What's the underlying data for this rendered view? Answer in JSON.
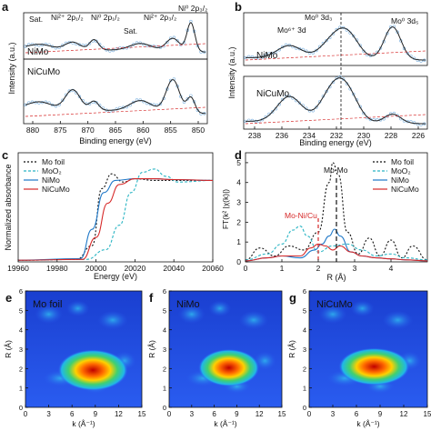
{
  "panels": {
    "a": {
      "label": "a",
      "xlabel": "Binding energy (eV)",
      "ylabel": "Intensity (a.u.)",
      "xticks": [
        "880",
        "875",
        "870",
        "865",
        "860",
        "855",
        "850"
      ],
      "top_name": "NiMo",
      "bottom_name": "NiCuMo",
      "annotations": [
        "Sat.",
        "Ni²⁺ 2p₁/₂",
        "Ni⁰ 2p₁/₂",
        "Sat.",
        "Ni²⁺ 2p₃/₂",
        "Ni⁰ 2p₃/₂"
      ]
    },
    "b": {
      "label": "b",
      "xlabel": "Binding energy (eV)",
      "ylabel": "Intensity (a.u.)",
      "xticks": [
        "238",
        "236",
        "234",
        "232",
        "230",
        "228",
        "226"
      ],
      "top_name": "NiMo",
      "bottom_name": "NiCuMo",
      "annotations": [
        "Mo⁰ 3d₃",
        "Mo⁶⁺ 3d",
        "Mo⁰ 3d₅"
      ]
    },
    "c": {
      "label": "c",
      "xlabel": "Energy (eV)",
      "ylabel": "Normalized absorbance",
      "xticks": [
        "19960",
        "19980",
        "20000",
        "20020",
        "20040",
        "20060"
      ],
      "legend": [
        "Mo foil",
        "MoO₂",
        "NiMo",
        "NiCuMo"
      ]
    },
    "d": {
      "label": "d",
      "xlabel": "R (Å)",
      "ylabel": "FT(k² |χ(k)|)",
      "xticks": [
        "0",
        "1",
        "2",
        "3",
        "4"
      ],
      "yticks": [
        "0",
        "1",
        "2",
        "3",
        "4",
        "5"
      ],
      "legend": [
        "Mo foil",
        "MoO₂",
        "NiMo",
        "NiCuMo"
      ],
      "annotations": [
        "Mo-Mo",
        "Mo-Ni/Cu"
      ]
    },
    "e": {
      "label": "e",
      "name": "Mo foil"
    },
    "f": {
      "label": "f",
      "name": "NiMo"
    },
    "g": {
      "label": "g",
      "name": "NiCuMo"
    },
    "wt": {
      "xlabel": "k (Å⁻¹)",
      "ylabel": "R (Å)",
      "xticks": [
        "0",
        "3",
        "6",
        "9",
        "12",
        "15"
      ],
      "yticks": [
        "0",
        "1",
        "2",
        "3",
        "4",
        "5",
        "6"
      ]
    }
  },
  "colors": {
    "mo_foil": "#111111",
    "moo2": "#2bb5c4",
    "nimo": "#1f78c8",
    "nicumo": "#d62828",
    "data_points": "#7fb3e0",
    "fit_red": "#d62828",
    "fit_dark": "#222222"
  },
  "chart_data": [
    {
      "type": "line",
      "panel": "c",
      "x_range": [
        19960,
        20060
      ],
      "y_range": [
        0,
        1.25
      ],
      "series": [
        {
          "name": "Mo foil",
          "x": [
            19960,
            19990,
            19998,
            20003,
            20008,
            20014,
            20020,
            20030,
            20040,
            20050,
            20060
          ],
          "y": [
            0.02,
            0.03,
            0.2,
            0.9,
            1.08,
            0.98,
            1.02,
            1.0,
            1.0,
            1.0,
            1.0
          ]
        },
        {
          "name": "MoO₂",
          "x": [
            19960,
            19995,
            20005,
            20012,
            20018,
            20024,
            20030,
            20036,
            20042,
            20060
          ],
          "y": [
            0.02,
            0.03,
            0.15,
            0.45,
            0.85,
            1.1,
            1.14,
            1.05,
            0.98,
            1.0
          ]
        },
        {
          "name": "NiMo",
          "x": [
            19960,
            19992,
            19998,
            20004,
            20010,
            20020,
            20030,
            20040,
            20060
          ],
          "y": [
            0.02,
            0.04,
            0.4,
            0.85,
            1.0,
            1.02,
            1.02,
            1.01,
            1.0
          ]
        },
        {
          "name": "NiCuMo",
          "x": [
            19960,
            19993,
            20000,
            20006,
            20012,
            20020,
            20030,
            20040,
            20060
          ],
          "y": [
            0.02,
            0.03,
            0.3,
            0.72,
            0.95,
            1.02,
            1.02,
            1.01,
            1.0
          ]
        }
      ]
    },
    {
      "type": "line",
      "panel": "d",
      "x_range": [
        0,
        5
      ],
      "y_range": [
        0,
        5.5
      ],
      "series": [
        {
          "name": "Mo foil",
          "x": [
            0,
            0.4,
            0.8,
            1.2,
            1.6,
            2.0,
            2.3,
            2.4,
            2.55,
            2.8,
            3.1,
            3.4,
            3.7,
            4.0,
            4.3,
            4.6,
            5.0
          ],
          "y": [
            0.1,
            0.7,
            0.3,
            0.8,
            0.6,
            1.5,
            4.0,
            5.0,
            4.4,
            1.5,
            0.4,
            1.2,
            0.3,
            1.1,
            0.2,
            0.8,
            0.1
          ]
        },
        {
          "name": "MoO₂",
          "x": [
            0,
            0.6,
            1.0,
            1.3,
            1.5,
            1.7,
            2.0,
            2.4,
            2.8,
            3.2,
            3.6,
            4.0,
            4.4,
            5.0
          ],
          "y": [
            0.1,
            0.4,
            0.9,
            1.6,
            1.8,
            1.3,
            0.5,
            0.8,
            0.9,
            0.6,
            0.3,
            0.4,
            0.2,
            0.1
          ]
        },
        {
          "name": "NiMo",
          "x": [
            0,
            0.6,
            1.0,
            1.5,
            1.9,
            2.1,
            2.3,
            2.45,
            2.6,
            2.9,
            3.2,
            3.6,
            4.0,
            4.4,
            5.0
          ],
          "y": [
            0.05,
            0.2,
            0.3,
            0.2,
            0.6,
            0.9,
            1.3,
            1.65,
            1.3,
            0.5,
            0.3,
            0.2,
            0.15,
            0.1,
            0.05
          ]
        },
        {
          "name": "NiCuMo",
          "x": [
            0,
            0.6,
            1.0,
            1.5,
            1.8,
            2.0,
            2.2,
            2.4,
            2.6,
            2.9,
            3.2,
            3.6,
            4.0,
            4.4,
            5.0
          ],
          "y": [
            0.05,
            0.2,
            0.3,
            0.3,
            0.7,
            0.9,
            0.8,
            0.6,
            0.8,
            0.5,
            0.3,
            0.2,
            0.15,
            0.1,
            0.05
          ]
        }
      ]
    }
  ]
}
